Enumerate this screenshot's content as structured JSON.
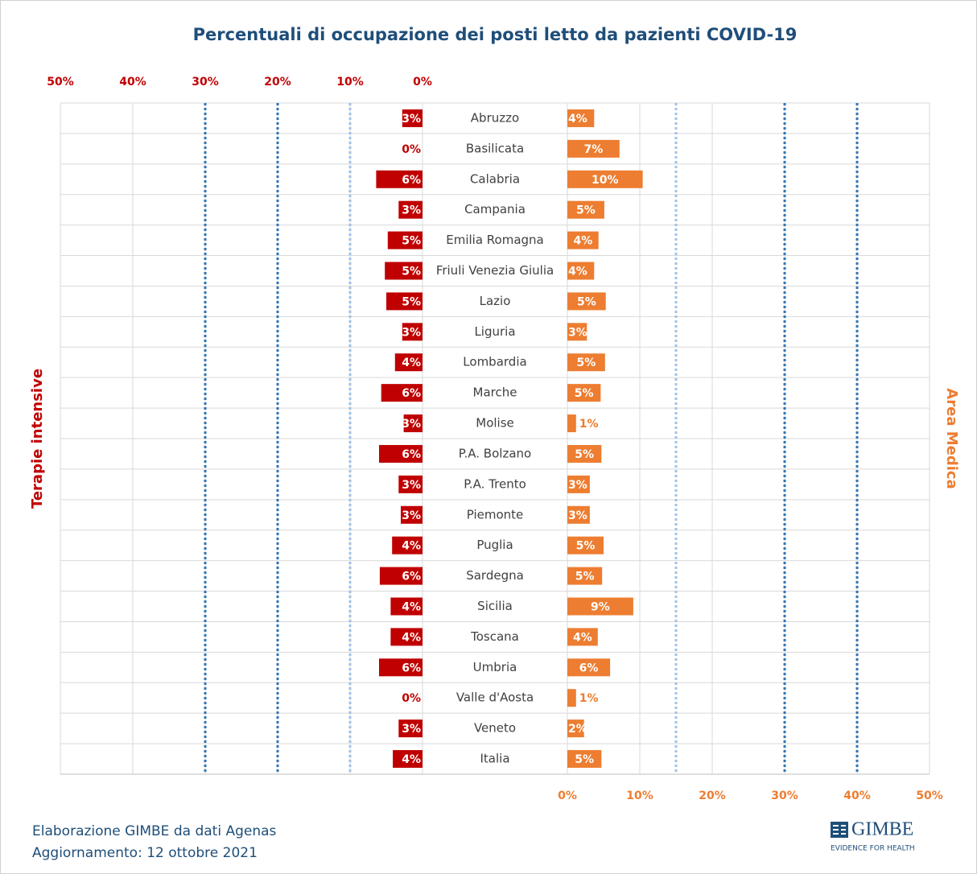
{
  "chart_data": {
    "type": "butterfly",
    "title": "Percentuali di occupazione dei posti letto da pazienti COVID-19",
    "categories": [
      "Abruzzo",
      "Basilicata",
      "Calabria",
      "Campania",
      "Emilia Romagna",
      "Friuli Venezia Giulia",
      "Lazio",
      "Liguria",
      "Lombardia",
      "Marche",
      "Molise",
      "P.A. Bolzano",
      "P.A. Trento",
      "Piemonte",
      "Puglia",
      "Sardegna",
      "Sicilia",
      "Toscana",
      "Umbria",
      "Valle d'Aosta",
      "Veneto",
      "Italia"
    ],
    "series": [
      {
        "name": "Terapie intensive",
        "color": "#c00000",
        "values": [
          2.8,
          0,
          6.4,
          3.3,
          4.8,
          5.2,
          5.0,
          2.8,
          3.8,
          5.7,
          2.6,
          6.0,
          3.3,
          3.0,
          4.2,
          5.9,
          4.4,
          4.4,
          6.0,
          0,
          3.3,
          4.1
        ],
        "value_labels": [
          "3%",
          "0%",
          "6%",
          "3%",
          "5%",
          "5%",
          "5%",
          "3%",
          "4%",
          "6%",
          "3%",
          "6%",
          "3%",
          "3%",
          "4%",
          "6%",
          "4%",
          "4%",
          "6%",
          "0%",
          "3%",
          "4%"
        ],
        "xlim": [
          50,
          0
        ],
        "xticks": [
          {
            "value": 50,
            "label": "50%"
          },
          {
            "value": 40,
            "label": "40%"
          },
          {
            "value": 30,
            "label": "30%"
          },
          {
            "value": 20,
            "label": "20%"
          },
          {
            "value": 10,
            "label": "10%"
          },
          {
            "value": 0,
            "label": "0%"
          }
        ],
        "thresholds": [
          10,
          20,
          30
        ],
        "threshold_colors": [
          "#9dc3e6",
          "#2e75b6",
          "#2e75b6"
        ]
      },
      {
        "name": "Area Medica",
        "color": "#ed7d31",
        "values": [
          3.7,
          7.2,
          10.4,
          5.1,
          4.3,
          3.7,
          5.3,
          2.7,
          5.2,
          4.6,
          1.2,
          4.7,
          3.1,
          3.1,
          5.0,
          4.8,
          9.1,
          4.2,
          5.9,
          1.2,
          2.3,
          4.7
        ],
        "value_labels": [
          "4%",
          "7%",
          "10%",
          "5%",
          "4%",
          "4%",
          "5%",
          "3%",
          "5%",
          "5%",
          "1%",
          "5%",
          "3%",
          "3%",
          "5%",
          "5%",
          "9%",
          "4%",
          "6%",
          "1%",
          "2%",
          "5%"
        ],
        "xlim": [
          0,
          50
        ],
        "xticks": [
          {
            "value": 0,
            "label": "0%"
          },
          {
            "value": 10,
            "label": "10%"
          },
          {
            "value": 20,
            "label": "20%"
          },
          {
            "value": 30,
            "label": "30%"
          },
          {
            "value": 40,
            "label": "40%"
          },
          {
            "value": 50,
            "label": "50%"
          }
        ],
        "thresholds": [
          15,
          30,
          40
        ],
        "threshold_colors": [
          "#9dc3e6",
          "#2e75b6",
          "#2e75b6"
        ]
      }
    ],
    "grid": true
  },
  "footer": {
    "lines": [
      "Elaborazione GIMBE da dati Agenas",
      "Aggiornamento: 12 ottobre 2021"
    ]
  },
  "logo": {
    "text": "GIMBE",
    "tagline": "EVIDENCE FOR HEALTH"
  }
}
